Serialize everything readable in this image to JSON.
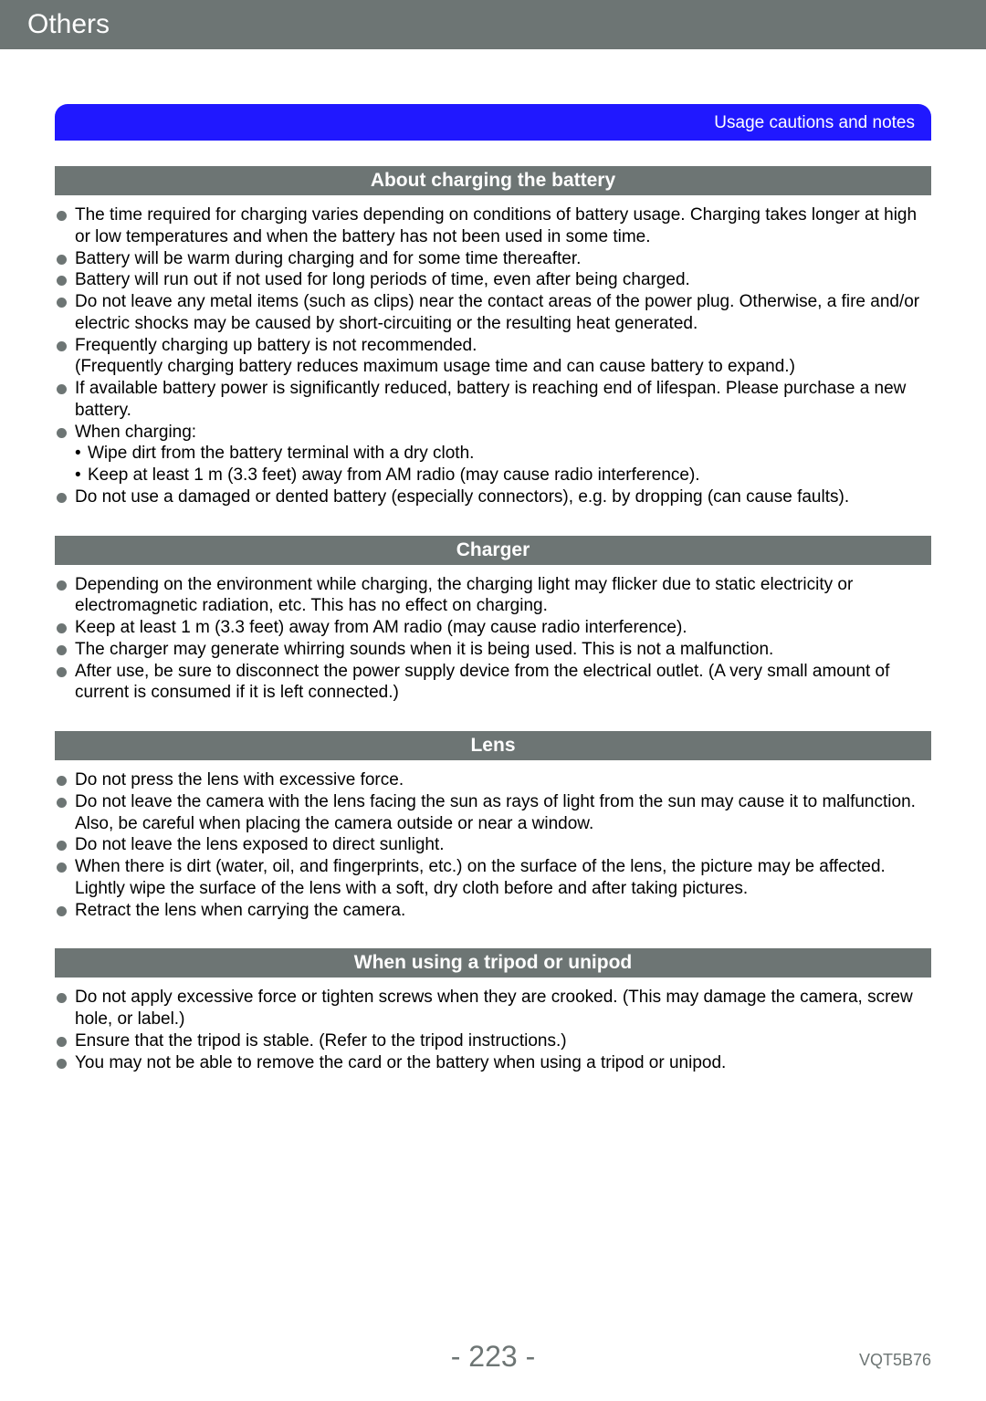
{
  "header": {
    "title": "Others"
  },
  "banner": {
    "text": "Usage cautions and notes"
  },
  "colors": {
    "header_bg": "#6d7574",
    "header_text": "#ffffff",
    "banner_bg": "#2018ff",
    "banner_text": "#ffffff",
    "section_bg": "#6d7574",
    "section_text": "#ffffff",
    "bullet_color": "#6d7574",
    "page_bg": "#ffffff",
    "body_text": "#000000",
    "footer_text": "#6d7574"
  },
  "typography": {
    "header_fontsize": 30,
    "banner_fontsize": 19,
    "section_fontsize": 21,
    "body_fontsize": 19,
    "page_number_fontsize": 32,
    "docid_fontsize": 18
  },
  "sections": [
    {
      "title": "About charging the battery",
      "items": [
        {
          "text": "The time required for charging varies depending on conditions of battery usage. Charging takes longer at high or low temperatures and when the battery has not been used in some time."
        },
        {
          "text": "Battery will be warm during charging and for some time thereafter."
        },
        {
          "text": "Battery will run out if not used for long periods of time, even after being charged."
        },
        {
          "text": "Do not leave any metal items (such as clips) near the contact areas of the power plug. Otherwise, a fire and/or electric shocks may be caused by short-circuiting or the resulting heat generated."
        },
        {
          "text": "Frequently charging up battery is not recommended.",
          "extra": "(Frequently charging battery reduces maximum usage time and can cause battery to expand.)"
        },
        {
          "text": "If available battery power is significantly reduced, battery is reaching end of lifespan. Please purchase a new battery."
        },
        {
          "text": "When charging:",
          "subs": [
            "Wipe dirt from the battery terminal with a dry cloth.",
            "Keep at least 1 m (3.3 feet) away from AM radio (may cause radio interference)."
          ]
        },
        {
          "text": "Do not use a damaged or dented battery (especially connectors), e.g. by dropping (can cause faults)."
        }
      ]
    },
    {
      "title": "Charger",
      "items": [
        {
          "text": "Depending on the environment while charging, the charging light may flicker due to static electricity or electromagnetic radiation, etc. This has no effect on charging."
        },
        {
          "text": "Keep at least 1 m (3.3 feet) away from AM radio (may cause radio interference)."
        },
        {
          "text": "The charger may generate whirring sounds when it is being used. This is not a malfunction."
        },
        {
          "text": "After use, be sure to disconnect the power supply device from the electrical outlet. (A very small amount of current is consumed if it is left connected.)"
        }
      ]
    },
    {
      "title": "Lens",
      "items": [
        {
          "text": "Do not press the lens with excessive force."
        },
        {
          "text": "Do not leave the camera with the lens facing the sun as rays of light from the sun may cause it to malfunction. Also, be careful when placing the camera outside or near a window."
        },
        {
          "text": "Do not leave the lens exposed to direct sunlight."
        },
        {
          "text": "When there is dirt (water, oil, and fingerprints, etc.) on the surface of the lens, the picture may be affected. Lightly wipe the surface of the lens with a soft, dry cloth before and after taking pictures."
        },
        {
          "text": "Retract the lens when carrying the camera."
        }
      ]
    },
    {
      "title": "When using a tripod or unipod",
      "items": [
        {
          "text": "Do not apply excessive force or tighten screws when they are crooked. (This may damage the camera, screw hole, or label.)"
        },
        {
          "text": "Ensure that the tripod is stable. (Refer to the tripod instructions.)"
        },
        {
          "text": "You may not be able to remove the card or the battery when using a tripod or unipod."
        }
      ]
    }
  ],
  "footer": {
    "page_number": "- 223 -",
    "doc_id": "VQT5B76"
  }
}
